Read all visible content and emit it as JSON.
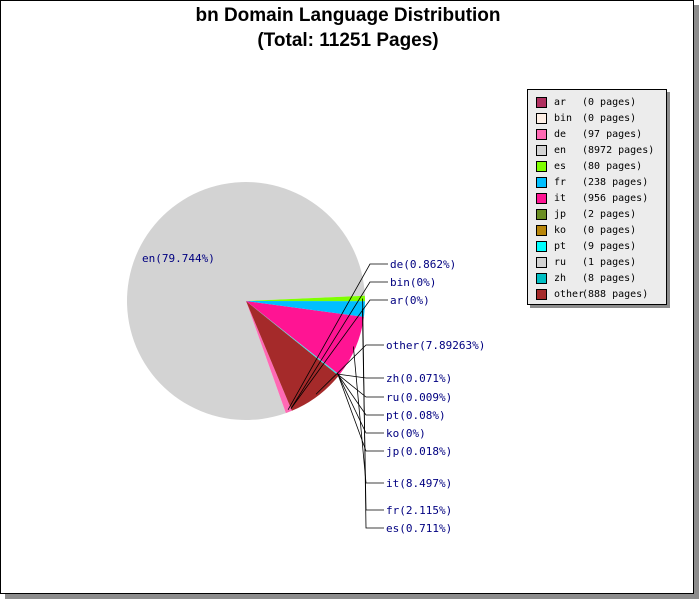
{
  "chart_data": {
    "type": "pie",
    "title": "bn Domain Language Distribution",
    "subtitle": "(Total: 11251 Pages)",
    "slices": [
      {
        "code": "en",
        "pages": 8972,
        "percent": 79.744,
        "color": "#d3d3d3",
        "label": "en(79.744%)",
        "legend": "(8972 pages)"
      },
      {
        "code": "de",
        "pages": 97,
        "percent": 0.862,
        "color": "#ff69b4",
        "label": "de(0.862%)",
        "legend": "(97 pages)"
      },
      {
        "code": "bin",
        "pages": 0,
        "percent": 0,
        "color": "#fff0e6",
        "label": "bin(0%)",
        "legend": "(0 pages)"
      },
      {
        "code": "ar",
        "pages": 0,
        "percent": 0,
        "color": "#b03060",
        "label": "ar(0%)",
        "legend": "(0 pages)"
      },
      {
        "code": "other",
        "pages": 888,
        "percent": 7.89263,
        "color": "#a52a2a",
        "label": "other(7.89263%)",
        "legend": "(888 pages)"
      },
      {
        "code": "zh",
        "pages": 8,
        "percent": 0.071,
        "color": "#00bfc4",
        "label": "zh(0.071%)",
        "legend": "(8 pages)"
      },
      {
        "code": "ru",
        "pages": 1,
        "percent": 0.009,
        "color": "#d3d3d3",
        "label": "ru(0.009%)",
        "legend": "(1 pages)"
      },
      {
        "code": "pt",
        "pages": 9,
        "percent": 0.08,
        "color": "#00ffff",
        "label": "pt(0.08%)",
        "legend": "(9 pages)"
      },
      {
        "code": "ko",
        "pages": 0,
        "percent": 0,
        "color": "#b8860b",
        "label": "ko(0%)",
        "legend": "(0 pages)"
      },
      {
        "code": "jp",
        "pages": 2,
        "percent": 0.018,
        "color": "#6b8e23",
        "label": "jp(0.018%)",
        "legend": "(2 pages)"
      },
      {
        "code": "it",
        "pages": 956,
        "percent": 8.497,
        "color": "#ff1493",
        "label": "it(8.497%)",
        "legend": "(956 pages)"
      },
      {
        "code": "fr",
        "pages": 238,
        "percent": 2.115,
        "color": "#00bfff",
        "label": "fr(2.115%)",
        "legend": "(238 pages)"
      },
      {
        "code": "es",
        "pages": 80,
        "percent": 0.711,
        "color": "#7fff00",
        "label": "es(0.711%)",
        "legend": "(80 pages)"
      }
    ],
    "legend_order": [
      "ar",
      "bin",
      "de",
      "en",
      "es",
      "fr",
      "it",
      "jp",
      "ko",
      "pt",
      "ru",
      "zh",
      "other"
    ],
    "legend_placement": "top-right"
  }
}
